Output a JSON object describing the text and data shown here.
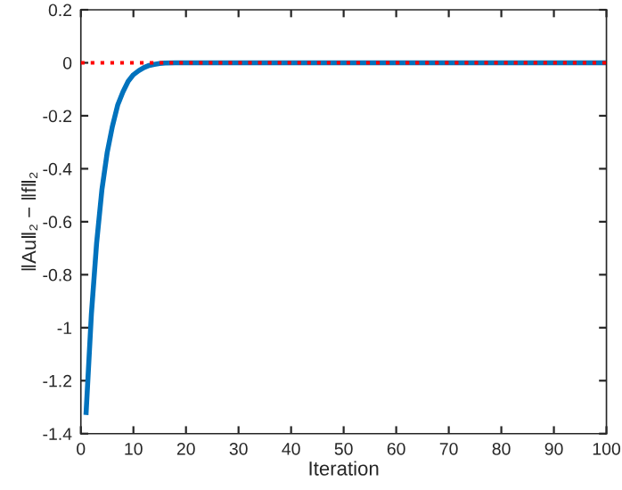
{
  "chart_data": {
    "type": "line",
    "xlabel": "Iteration",
    "ylabel": "‖Au‖₂ − ‖f‖₂",
    "series": [
      {
        "color": "#0072bd",
        "x": [
          1,
          2,
          3,
          4,
          5,
          6,
          7,
          8,
          9,
          10,
          11,
          12,
          13,
          14,
          15,
          16,
          18,
          20,
          30,
          40,
          50,
          60,
          70,
          80,
          90,
          100
        ],
        "values": [
          -1.32,
          -0.95,
          -0.68,
          -0.48,
          -0.34,
          -0.24,
          -0.16,
          -0.11,
          -0.07,
          -0.045,
          -0.03,
          -0.018,
          -0.01,
          -0.006,
          -0.003,
          -0.001,
          0,
          0,
          0,
          0,
          0,
          0,
          0,
          0,
          0,
          0
        ]
      }
    ],
    "ref_lines": [
      {
        "axis": "y",
        "value": 0,
        "color": "#ff0000",
        "line_style": "dotted"
      }
    ],
    "xlim": [
      0,
      100
    ],
    "xticks": [
      0,
      10,
      20,
      30,
      40,
      50,
      60,
      70,
      80,
      90,
      100
    ],
    "ylim": [
      -1.4,
      0.2
    ],
    "yticks": [
      -1.4,
      -1.2,
      -1,
      -0.8,
      -0.6,
      -0.4,
      -0.2,
      0,
      0.2
    ],
    "grid": false,
    "legend": false
  }
}
